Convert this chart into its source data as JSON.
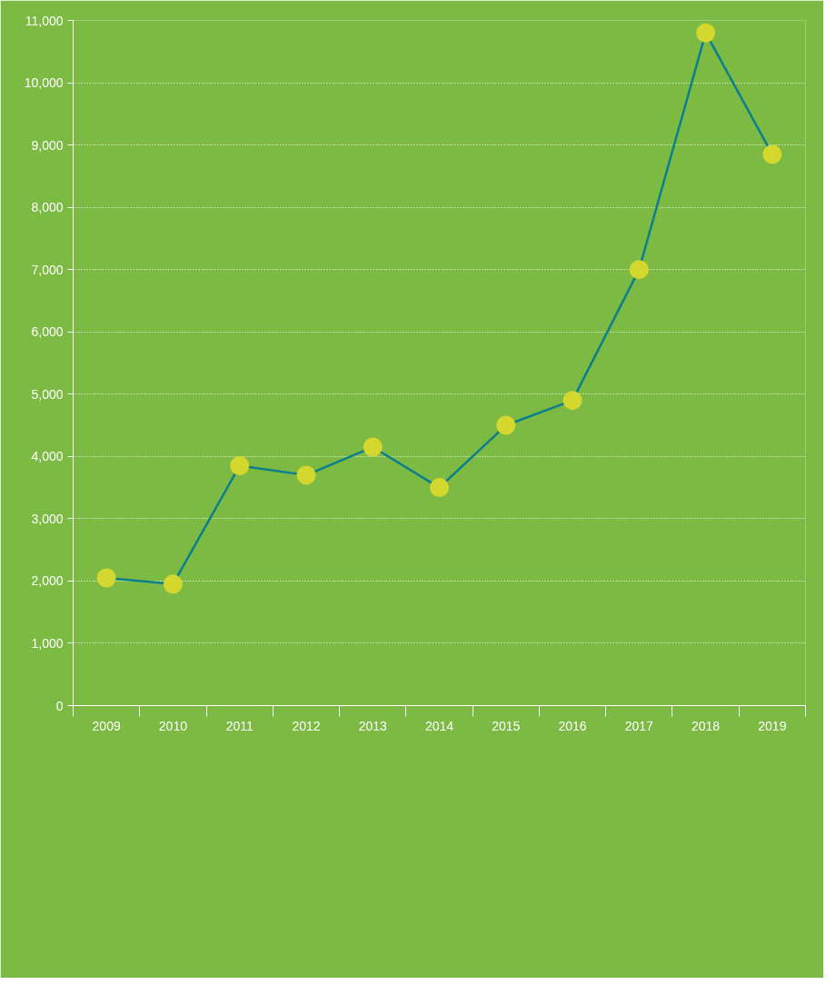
{
  "chart_data": {
    "type": "line",
    "categories": [
      "2009",
      "2010",
      "2011",
      "2012",
      "2013",
      "2014",
      "2015",
      "2016",
      "2017",
      "2018",
      "2019"
    ],
    "series": [
      {
        "color": "#0b7f8c",
        "colors": [
          "#d4d82e",
          "#d4d82e",
          "#d4d82e",
          "#d4d82e",
          "#d4d82e",
          "#d4d82e",
          "#d4d82e",
          "#d4d82e",
          "#d4d82e",
          "#d4d82e",
          "#d4d82e"
        ],
        "values": [
          2050,
          1950,
          3850,
          3700,
          4150,
          3500,
          4500,
          4900,
          7000,
          10800,
          8850
        ]
      }
    ],
    "ylim": [
      0,
      11000
    ],
    "yticks": [
      0,
      {
        "value": 1000,
        "label": "1,000"
      },
      {
        "value": 2000,
        "label": "2,000"
      },
      {
        "value": 3000,
        "label": "3,000"
      },
      {
        "value": 4000,
        "label": "4,000"
      },
      {
        "value": 5000,
        "label": "5,000"
      },
      {
        "value": 6000,
        "label": "6,000"
      },
      {
        "value": 7000,
        "label": "7,000"
      },
      {
        "value": 8000,
        "label": "8,000"
      },
      {
        "value": 9000,
        "label": "9,000"
      },
      {
        "value": 10000,
        "label": "10,000"
      },
      {
        "value": 11000,
        "label": "11,000"
      }
    ],
    "grid": "y",
    "marker": "circle",
    "line_style": "solid"
  }
}
